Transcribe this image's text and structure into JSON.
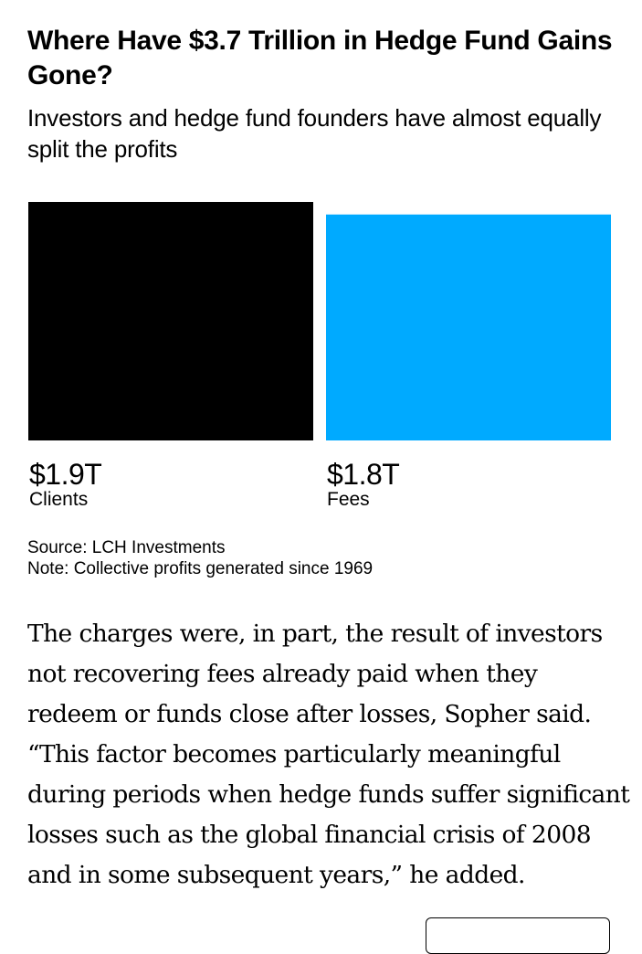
{
  "chart_data": {
    "type": "bar",
    "title": "Where Have $3.7 Trillion in Hedge Fund Gains Gone?",
    "subtitle": "Investors and hedge fund founders have almost equally split the profits",
    "categories": [
      "Clients",
      "Fees"
    ],
    "values": [
      1.9,
      1.8
    ],
    "value_labels": [
      "$1.9T",
      "$1.8T"
    ],
    "colors": [
      "#000000",
      "#00aaff"
    ],
    "ylim": [
      0,
      1.9
    ],
    "grid": false,
    "legend": "none",
    "source": "Source: LCH Investments",
    "note": "Note: Collective profits generated since 1969"
  },
  "article": {
    "paragraph": "The charges were, in part, the result of investors not recovering fees already paid when they redeem or funds close after losses, Sopher said. “This factor becomes particularly meaningful during periods when hedge funds suffer significant losses such as the global financial crisis of 2008 and in some subsequent years,” he added."
  }
}
